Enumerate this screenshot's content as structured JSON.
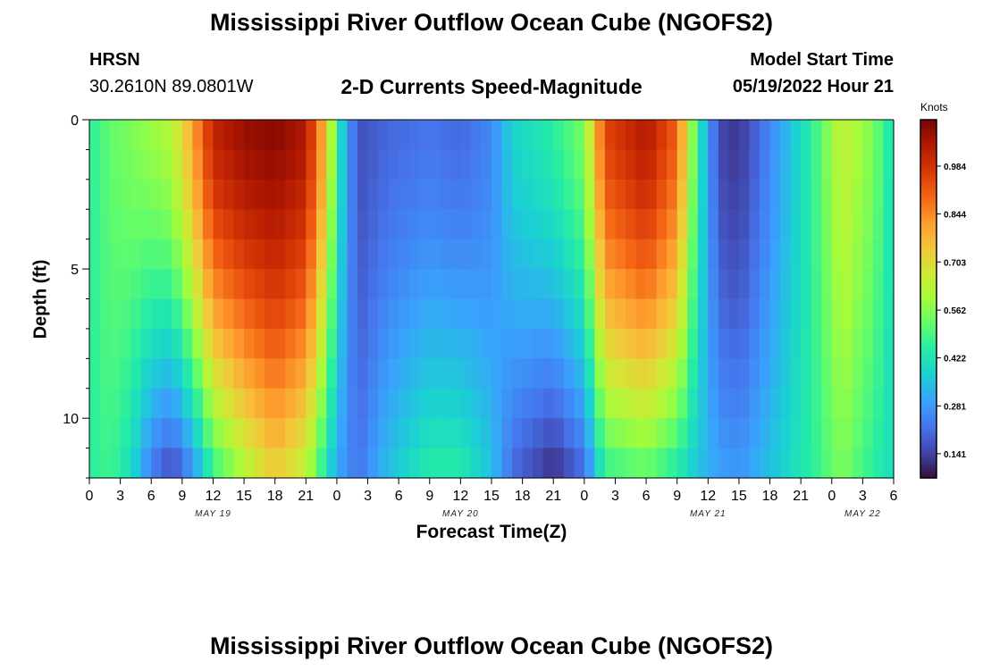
{
  "header": {
    "title": "Mississippi River Outflow Ocean Cube (NGOFS2)",
    "station": "HRSN",
    "coords": "30.2610N  89.0801W",
    "subtitle": "2-D Currents Speed-Magnitude",
    "model_start_label": "Model Start Time",
    "model_start_value": "05/19/2022 Hour 21"
  },
  "footer": {
    "title": "Mississippi River Outflow Ocean Cube (NGOFS2)"
  },
  "chart_data": {
    "type": "heatmap",
    "title": "2-D Currents Speed-Magnitude",
    "xlabel": "Forecast Time(Z)",
    "ylabel": "Depth (ft)",
    "x_range_hours": [
      0,
      78
    ],
    "x_ticks_every_hours": 3,
    "x_tick_labels": [
      "0",
      "3",
      "6",
      "9",
      "12",
      "15",
      "18",
      "21",
      "0",
      "3",
      "6",
      "9",
      "12",
      "15",
      "18",
      "21",
      "0",
      "3",
      "6",
      "9",
      "12",
      "15",
      "18",
      "21",
      "0",
      "3",
      "6"
    ],
    "date_labels": [
      {
        "label": "MAY 19",
        "hour": 12
      },
      {
        "label": "MAY 20",
        "hour": 36
      },
      {
        "label": "MAY 21",
        "hour": 60
      },
      {
        "label": "MAY 22",
        "hour": 75
      }
    ],
    "ylim": [
      0,
      12
    ],
    "y_inverted": true,
    "y_tick_labels": [
      "0",
      "5",
      "10"
    ],
    "y_tick_values": [
      0,
      5,
      10
    ],
    "colorbar": {
      "unit": "Knots",
      "tick_labels": [
        "0.984",
        "0.844",
        "0.703",
        "0.562",
        "0.422",
        "0.281",
        "0.141"
      ],
      "tick_values": [
        0.984,
        0.844,
        0.703,
        0.562,
        0.422,
        0.281,
        0.141
      ],
      "range": [
        0.07,
        1.12
      ],
      "colormap": [
        "#30123b",
        "#4145ab",
        "#4675ed",
        "#39a2fc",
        "#1bcfd4",
        "#24eca6",
        "#61fc6c",
        "#a4fc3b",
        "#d1e834",
        "#f3c63a",
        "#fe9b2d",
        "#f36315",
        "#d93806",
        "#b11901",
        "#7a0403"
      ]
    },
    "depth_levels_ft": [
      0.5,
      1.5,
      2.5,
      3.5,
      4.5,
      5.5,
      6.5,
      7.5,
      8.5,
      9.5,
      10.5,
      11.5
    ],
    "speed_profile_knots": [
      {
        "hour": 0,
        "surface": 0.45,
        "bottom": 0.45
      },
      {
        "hour": 2,
        "surface": 0.52,
        "bottom": 0.48
      },
      {
        "hour": 4,
        "surface": 0.55,
        "bottom": 0.4
      },
      {
        "hour": 6,
        "surface": 0.58,
        "bottom": 0.22
      },
      {
        "hour": 8,
        "surface": 0.62,
        "bottom": 0.14
      },
      {
        "hour": 10,
        "surface": 0.8,
        "bottom": 0.25
      },
      {
        "hour": 12,
        "surface": 1.02,
        "bottom": 0.45
      },
      {
        "hour": 15,
        "surface": 1.08,
        "bottom": 0.6
      },
      {
        "hour": 18,
        "surface": 1.1,
        "bottom": 0.72
      },
      {
        "hour": 21,
        "surface": 1.05,
        "bottom": 0.62
      },
      {
        "hour": 23,
        "surface": 0.75,
        "bottom": 0.4
      },
      {
        "hour": 24,
        "surface": 0.45,
        "bottom": 0.3
      },
      {
        "hour": 26,
        "surface": 0.16,
        "bottom": 0.22
      },
      {
        "hour": 29,
        "surface": 0.2,
        "bottom": 0.35
      },
      {
        "hour": 33,
        "surface": 0.22,
        "bottom": 0.45
      },
      {
        "hour": 36,
        "surface": 0.2,
        "bottom": 0.45
      },
      {
        "hour": 39,
        "surface": 0.25,
        "bottom": 0.35
      },
      {
        "hour": 41,
        "surface": 0.38,
        "bottom": 0.2
      },
      {
        "hour": 45,
        "surface": 0.45,
        "bottom": 0.1
      },
      {
        "hour": 48,
        "surface": 0.55,
        "bottom": 0.2
      },
      {
        "hour": 50,
        "surface": 0.95,
        "bottom": 0.45
      },
      {
        "hour": 54,
        "surface": 1.05,
        "bottom": 0.5
      },
      {
        "hour": 57,
        "surface": 0.9,
        "bottom": 0.42
      },
      {
        "hour": 59,
        "surface": 0.45,
        "bottom": 0.35
      },
      {
        "hour": 61,
        "surface": 0.15,
        "bottom": 0.3
      },
      {
        "hour": 63,
        "surface": 0.12,
        "bottom": 0.28
      },
      {
        "hour": 66,
        "surface": 0.25,
        "bottom": 0.35
      },
      {
        "hour": 70,
        "surface": 0.45,
        "bottom": 0.45
      },
      {
        "hour": 73,
        "surface": 0.65,
        "bottom": 0.55
      },
      {
        "hour": 76,
        "surface": 0.55,
        "bottom": 0.45
      },
      {
        "hour": 78,
        "surface": 0.4,
        "bottom": 0.4
      }
    ]
  }
}
